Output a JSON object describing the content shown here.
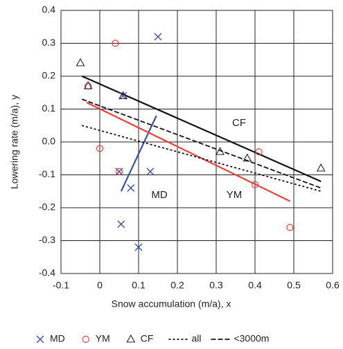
{
  "chart_data": {
    "type": "scatter",
    "x_label": "Snow accumulation (m/a), x",
    "y_label": "Lowering rate (m/a), y",
    "xlim": [
      -0.1,
      0.6
    ],
    "xticks": [
      -0.1,
      0,
      0.1,
      0.2,
      0.3,
      0.4,
      0.5,
      0.6
    ],
    "ylim": [
      -0.4,
      0.4
    ],
    "yticks": [
      -0.4,
      -0.3,
      -0.2,
      -0.1,
      {
        "value": 0,
        "label": "0.0"
      },
      0.1,
      0.2,
      0.3,
      0.4
    ],
    "grid": true,
    "series": [
      {
        "name": "MD",
        "color": "#3a4fa8",
        "marker": "x",
        "x": [
          0.15,
          0.06,
          0.13,
          0.05,
          0.08,
          0.055,
          0.1
        ],
        "values": [
          0.32,
          0.14,
          -0.09,
          -0.09,
          -0.14,
          -0.25,
          -0.32
        ]
      },
      {
        "name": "YM",
        "color": "#e8413a",
        "marker": "circle",
        "x": [
          0.04,
          -0.03,
          0.0,
          0.05,
          0.41,
          0.4,
          0.49
        ],
        "values": [
          0.3,
          0.17,
          -0.02,
          -0.09,
          -0.03,
          -0.13,
          -0.26
        ]
      },
      {
        "name": "CF",
        "color": "#222222",
        "marker": "triangle",
        "x": [
          -0.05,
          -0.03,
          0.06,
          0.31,
          0.38,
          0.57
        ],
        "values": [
          0.24,
          0.17,
          0.14,
          -0.03,
          -0.05,
          -0.08
        ]
      }
    ],
    "lines": [
      {
        "color": "#3a4fa8",
        "dash": "solid",
        "x": [
          0.055,
          0.146
        ],
        "values": [
          -0.15,
          0.08
        ]
      },
      {
        "color": "#e8413a",
        "dash": "solid",
        "x": [
          -0.034,
          0.49
        ],
        "values": [
          0.12,
          -0.18
        ]
      },
      {
        "color": "#111111",
        "dash": "solid",
        "x": [
          -0.046,
          0.57
        ],
        "values": [
          0.2,
          -0.12
        ]
      },
      {
        "name": "all",
        "color": "#111111",
        "dash": "dotted",
        "x": [
          -0.046,
          0.57
        ],
        "values": [
          0.05,
          -0.15
        ]
      },
      {
        "name": "<3000m",
        "color": "#111111",
        "dash": "dashed",
        "x": [
          -0.046,
          0.57
        ],
        "values": [
          0.13,
          -0.14
        ]
      }
    ],
    "annotations": [
      "CF",
      "MD",
      "YM"
    ]
  }
}
